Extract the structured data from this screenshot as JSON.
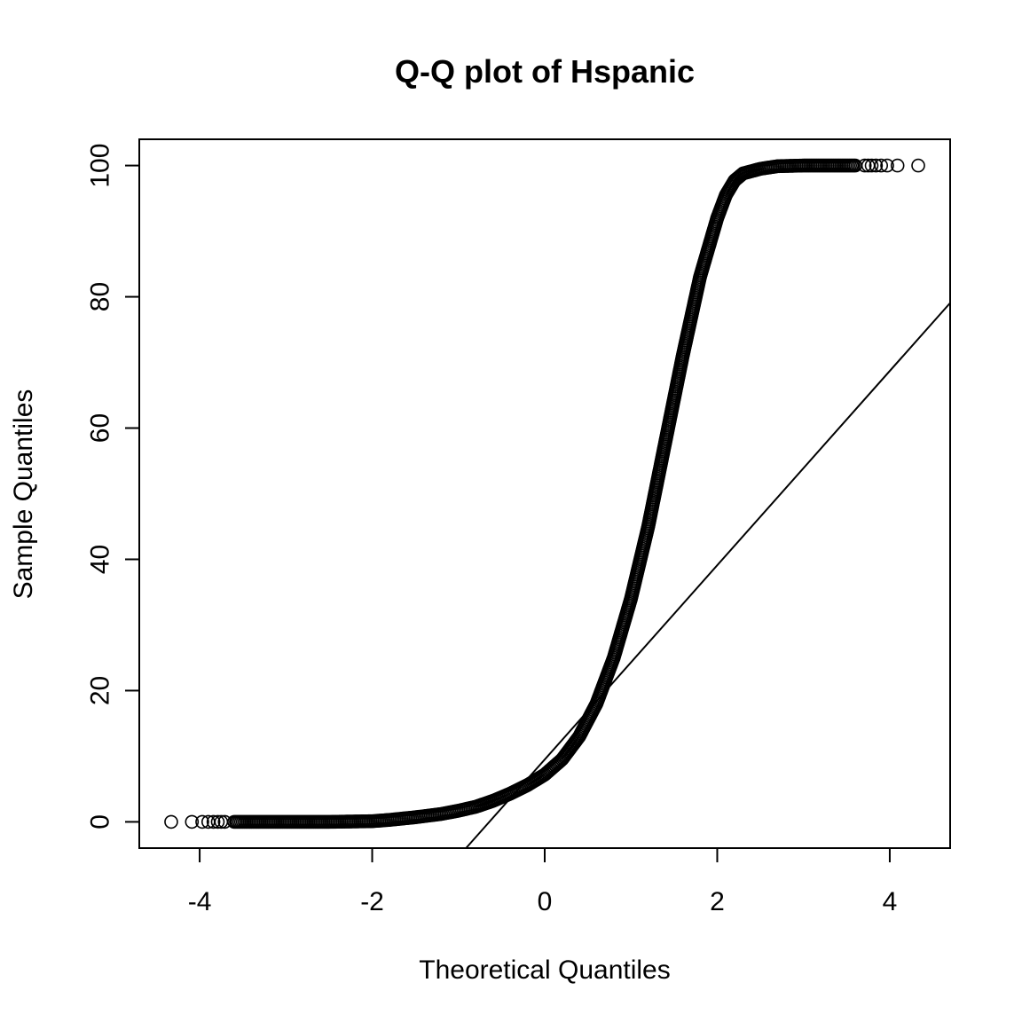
{
  "chart_data": {
    "type": "scatter",
    "title": "Q-Q plot of Hspanic",
    "xlabel": "Theoretical Quantiles",
    "ylabel": "Sample Quantiles",
    "xlim": [
      -4.7,
      4.7
    ],
    "ylim": [
      -4,
      104
    ],
    "x_ticks": [
      -4,
      -2,
      0,
      2,
      4
    ],
    "x_tick_labels": [
      "-4",
      "-2",
      "0",
      "2",
      "4"
    ],
    "y_ticks": [
      0,
      20,
      40,
      60,
      80,
      100
    ],
    "y_tick_labels": [
      "0",
      "20",
      "40",
      "60",
      "80",
      "100"
    ],
    "grid": false,
    "legend": "none",
    "marker": "open-circle",
    "series": [
      {
        "points": [
          [
            -4.33,
            0
          ],
          [
            -4.09,
            0
          ],
          [
            -3.97,
            0
          ],
          [
            -3.9,
            0
          ],
          [
            -3.84,
            0
          ],
          [
            -3.79,
            0
          ],
          [
            -3.75,
            0
          ],
          [
            -3.71,
            0
          ],
          [
            -3.6,
            0
          ],
          [
            -3.4,
            0
          ],
          [
            -3.0,
            0
          ],
          [
            -2.5,
            0
          ],
          [
            -2.0,
            0.1
          ],
          [
            -1.8,
            0.3
          ],
          [
            -1.5,
            0.7
          ],
          [
            -1.2,
            1.2
          ],
          [
            -1.0,
            1.7
          ],
          [
            -0.8,
            2.3
          ],
          [
            -0.6,
            3.2
          ],
          [
            -0.4,
            4.3
          ],
          [
            -0.2,
            5.6
          ],
          [
            0.0,
            7.2
          ],
          [
            0.2,
            9.5
          ],
          [
            0.4,
            13.0
          ],
          [
            0.6,
            18.0
          ],
          [
            0.8,
            25.0
          ],
          [
            1.0,
            34.0
          ],
          [
            1.2,
            45.0
          ],
          [
            1.4,
            58.0
          ],
          [
            1.6,
            71.0
          ],
          [
            1.8,
            83.0
          ],
          [
            2.0,
            92.0
          ],
          [
            2.1,
            95.5
          ],
          [
            2.2,
            97.7
          ],
          [
            2.3,
            98.8
          ],
          [
            2.5,
            99.5
          ],
          [
            2.7,
            99.9
          ],
          [
            3.0,
            100
          ],
          [
            3.4,
            100
          ],
          [
            3.6,
            100
          ],
          [
            3.71,
            100
          ],
          [
            3.75,
            100
          ],
          [
            3.79,
            100
          ],
          [
            3.84,
            100
          ],
          [
            3.9,
            100
          ],
          [
            3.97,
            100
          ],
          [
            4.09,
            100
          ],
          [
            4.33,
            100
          ]
        ]
      }
    ],
    "reference_line": {
      "intercept": 9.5,
      "slope": 14.8
    }
  }
}
